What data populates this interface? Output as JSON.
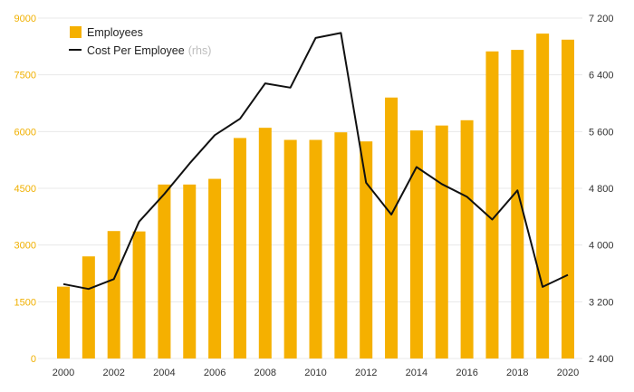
{
  "chart_data": {
    "type": "bar",
    "x": [
      "2000",
      "2001",
      "2002",
      "2003",
      "2004",
      "2005",
      "2006",
      "2007",
      "2008",
      "2009",
      "2010",
      "2011",
      "2012",
      "2013",
      "2014",
      "2015",
      "2016",
      "2017",
      "2018",
      "2019",
      "2020"
    ],
    "x_tick_labels": [
      "2000",
      "2002",
      "2004",
      "2006",
      "2008",
      "2010",
      "2012",
      "2014",
      "2016",
      "2018",
      "2020"
    ],
    "series": [
      {
        "name": "Employees",
        "type": "bar",
        "axis": "left",
        "color": "#f5b000",
        "values": [
          1900,
          2700,
          3370,
          3360,
          4600,
          4600,
          4750,
          5830,
          6100,
          5780,
          5780,
          5980,
          5740,
          6900,
          6030,
          6160,
          6300,
          8120,
          8160,
          8590,
          8430
        ]
      },
      {
        "name": "Cost Per Employee",
        "name_suffix": "(rhs)",
        "type": "line",
        "axis": "right",
        "color": "#111111",
        "values": [
          3450,
          3380,
          3520,
          4330,
          4720,
          5150,
          5550,
          5780,
          6280,
          6220,
          6920,
          6990,
          4880,
          4430,
          5100,
          4860,
          4680,
          4360,
          4770,
          3410,
          3580
        ]
      }
    ],
    "y_left": {
      "ylim": [
        0,
        9000
      ],
      "ticks": [
        "0",
        "1500",
        "3000",
        "4500",
        "6000",
        "7500",
        "9000"
      ],
      "tick_values": [
        0,
        1500,
        3000,
        4500,
        6000,
        7500,
        9000
      ],
      "tick_color": "#f0b000"
    },
    "y_right": {
      "ylim": [
        2400,
        7200
      ],
      "ticks": [
        "2 400",
        "3 200",
        "4 000",
        "4 800",
        "5 600",
        "6 400",
        "7 200"
      ],
      "tick_values": [
        2400,
        3200,
        4000,
        4800,
        5600,
        6400,
        7200
      ]
    },
    "grid": {
      "horizontal": true,
      "color": "#e8e8e8"
    },
    "legend": {
      "placement": "top-left"
    }
  }
}
